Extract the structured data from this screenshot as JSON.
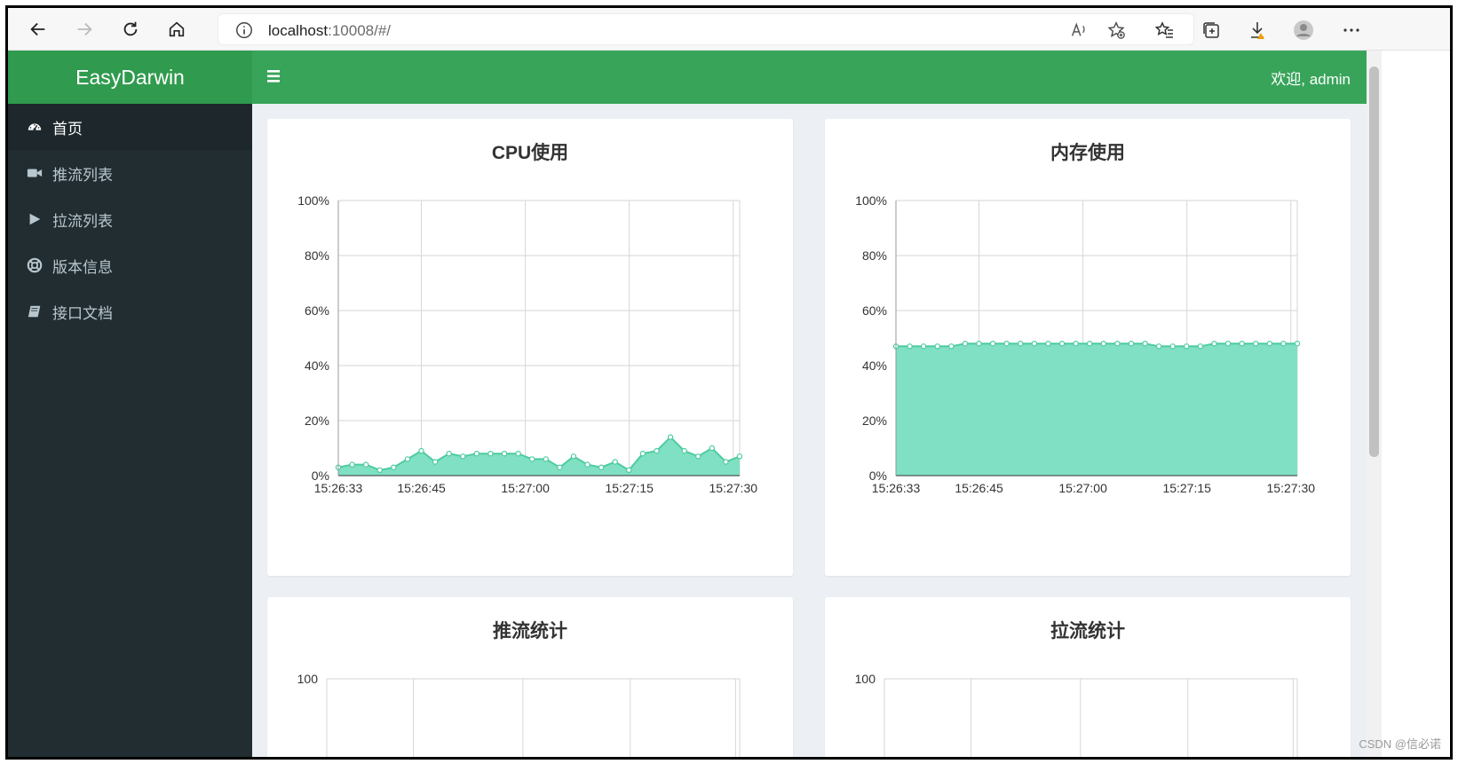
{
  "browser": {
    "url_host": "localhost",
    "url_rest": ":10008/#/"
  },
  "app": {
    "brand": "EasyDarwin",
    "welcome": "欢迎, admin",
    "accent": "#38a45a",
    "sidebar_bg": "#222d32"
  },
  "sidebar": {
    "items": [
      {
        "label": "首页",
        "icon": "dashboard-icon"
      },
      {
        "label": "推流列表",
        "icon": "video-camera-icon"
      },
      {
        "label": "拉流列表",
        "icon": "play-icon"
      },
      {
        "label": "版本信息",
        "icon": "life-ring-icon"
      },
      {
        "label": "接口文档",
        "icon": "book-icon"
      }
    ]
  },
  "cards": {
    "cpu": {
      "title": "CPU使用"
    },
    "mem": {
      "title": "内存使用"
    },
    "push": {
      "title": "推流统计"
    },
    "pull": {
      "title": "拉流统计"
    }
  },
  "watermark": "CSDN @信必诺",
  "chart_data": [
    {
      "type": "area",
      "title": "CPU使用",
      "color": "#7fe0c3",
      "line_color": "#4ecb9f",
      "x_ticks": [
        "15:26:33",
        "15:26:45",
        "15:27:00",
        "15:27:15",
        "15:27:30"
      ],
      "y_ticks": [
        "0%",
        "20%",
        "40%",
        "60%",
        "80%",
        "100%"
      ],
      "ylim": [
        0,
        100
      ],
      "values": [
        3,
        4,
        4,
        2,
        3,
        6,
        9,
        5,
        8,
        7,
        8,
        8,
        8,
        8,
        6,
        6,
        3,
        7,
        4,
        3,
        5,
        2,
        8,
        9,
        14,
        9,
        7,
        10,
        5,
        7
      ]
    },
    {
      "type": "area",
      "title": "内存使用",
      "color": "#7fe0c3",
      "line_color": "#4ecb9f",
      "x_ticks": [
        "15:26:33",
        "15:26:45",
        "15:27:00",
        "15:27:15",
        "15:27:30"
      ],
      "y_ticks": [
        "0%",
        "20%",
        "40%",
        "60%",
        "80%",
        "100%"
      ],
      "ylim": [
        0,
        100
      ],
      "values": [
        47,
        47,
        47,
        47,
        47,
        48,
        48,
        48,
        48,
        48,
        48,
        48,
        48,
        48,
        48,
        48,
        48,
        48,
        48,
        47,
        47,
        47,
        47,
        48,
        48,
        48,
        48,
        48,
        48,
        48
      ]
    },
    {
      "type": "line",
      "title": "推流统计",
      "y_ticks": [
        "100"
      ],
      "values": []
    },
    {
      "type": "line",
      "title": "拉流统计",
      "y_ticks": [
        "100"
      ],
      "values": []
    }
  ]
}
